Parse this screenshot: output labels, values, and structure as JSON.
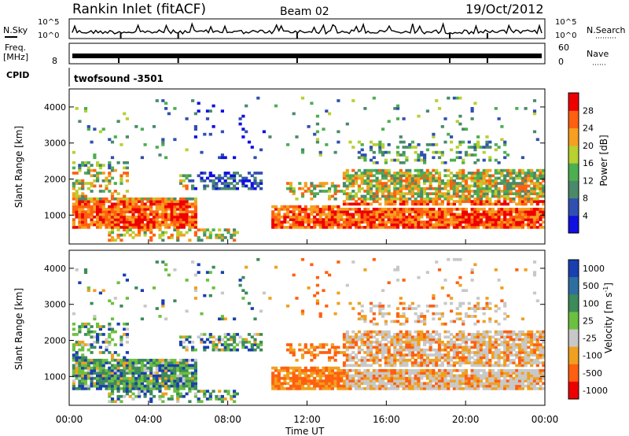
{
  "header": {
    "title": "Rankin Inlet (fitACF)",
    "beam": "Beam 02",
    "date": "19/Oct/2012"
  },
  "top_panels": {
    "nsky_label": "N.Sky",
    "nsky_ticks": [
      "10^5",
      "10^0"
    ],
    "nsearch_label": "N.Search",
    "nsearch_ticks": [
      "10^5",
      "10^0"
    ],
    "freq_label": "Freq.",
    "freq_unit": "[MHz]",
    "freq_ticks": [
      "8"
    ],
    "nave_label": "Nave",
    "nave_ticks": [
      "60",
      "0"
    ],
    "cpid_label": "CPID",
    "cpid_value": "twofsound -3501"
  },
  "chart_data": [
    {
      "type": "heatmap",
      "name": "power",
      "ylabel": "Slant Range [km]",
      "yticks": [
        "1000",
        "2000",
        "3000",
        "4000"
      ],
      "ylim": [
        200,
        4500
      ],
      "xlim": [
        "00:00",
        "24:00"
      ],
      "colorbar_label": "Power [dB]",
      "colorbar_ticks": [
        "4",
        "8",
        "12",
        "16",
        "20",
        "24",
        "28"
      ],
      "colorbar_colors": [
        "#1010e0",
        "#3050b0",
        "#4a8a6a",
        "#4caf50",
        "#b8d030",
        "#f5a020",
        "#ff6010",
        "#ee0000"
      ],
      "colors_hint": "dominant red near 800-1300 km"
    },
    {
      "type": "heatmap",
      "name": "velocity",
      "ylabel": "Slant Range [km]",
      "yticks": [
        "1000",
        "2000",
        "3000",
        "4000"
      ],
      "ylim": [
        200,
        4500
      ],
      "xlim": [
        "00:00",
        "24:00"
      ],
      "colorbar_label": "Velocity [m s",
      "colorbar_label_sup": "-1",
      "colorbar_label_end": "]",
      "colorbar_ticks": [
        "1000",
        "500",
        "100",
        "25",
        "-25",
        "-100",
        "-500",
        "-1000"
      ],
      "colorbar_colors": [
        "#1a3fb0",
        "#2e6fa0",
        "#3d8a5a",
        "#6cc040",
        "#c8c8c8",
        "#f0a020",
        "#ff6010",
        "#ee0000"
      ]
    }
  ],
  "xaxis": {
    "label": "Time UT",
    "ticks": [
      "00:00",
      "04:00",
      "08:00",
      "12:00",
      "16:00",
      "20:00",
      "00:00"
    ]
  }
}
